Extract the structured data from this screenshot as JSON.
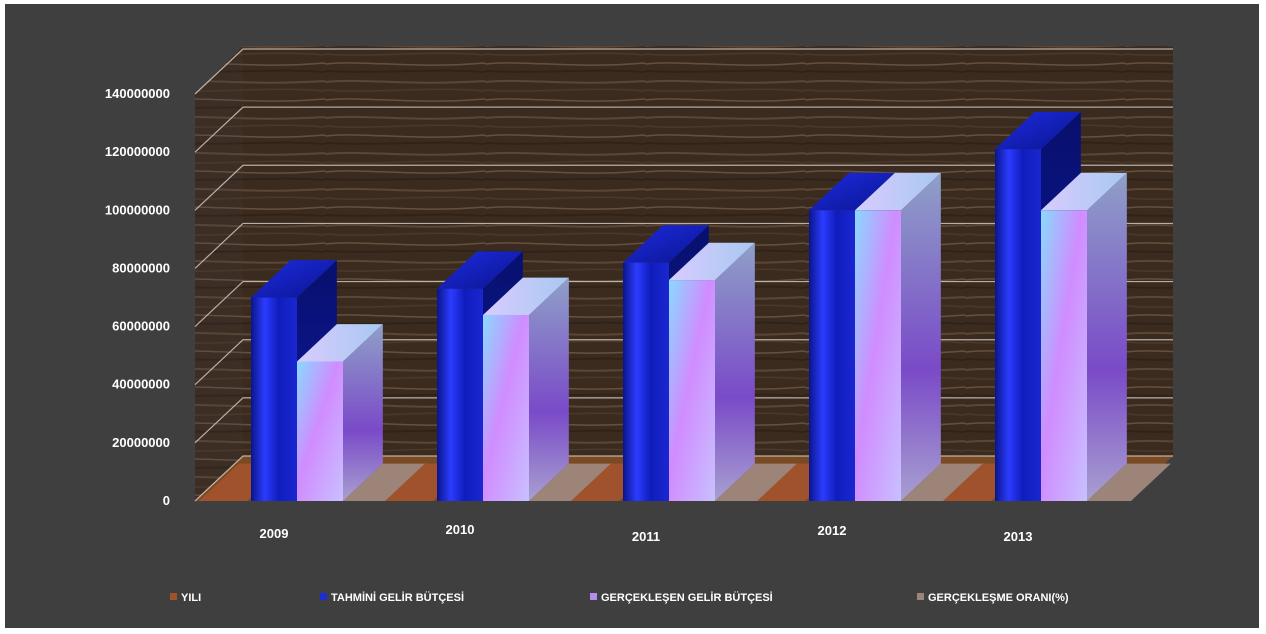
{
  "chart_data": {
    "type": "bar",
    "title": "",
    "xlabel": "",
    "ylabel": "",
    "categories": [
      "2009",
      "2010",
      "2011",
      "2012",
      "2013"
    ],
    "series": [
      {
        "name": "YILI",
        "values": [
          0,
          0,
          0,
          0,
          0
        ]
      },
      {
        "name": "TAHMİNİ GELİR BÜTÇESİ",
        "values": [
          70000000,
          73000000,
          82000000,
          100000000,
          121000000
        ]
      },
      {
        "name": "GERÇEKLEŞEN GELİR BÜTÇESİ",
        "values": [
          48000000,
          64000000,
          76000000,
          100000000,
          100000000
        ]
      },
      {
        "name": "GERÇEKLEŞME ORANI(%)",
        "values": [
          0,
          0,
          0,
          0,
          0
        ]
      }
    ],
    "yticks": [
      "0",
      "20000000",
      "40000000",
      "60000000",
      "80000000",
      "100000000",
      "120000000",
      "140000000"
    ],
    "ylim": [
      0,
      140000000
    ],
    "grid": true,
    "legend_position": "bottom",
    "colors": {
      "yili": "#a0522d",
      "tahmini": "#1e2bd8",
      "gerceklesen": "#b48cf0",
      "oran": "#9d8478",
      "wall": "#3a2a1e",
      "floor": "#7a4a22",
      "background": "#3f3f3f"
    }
  }
}
